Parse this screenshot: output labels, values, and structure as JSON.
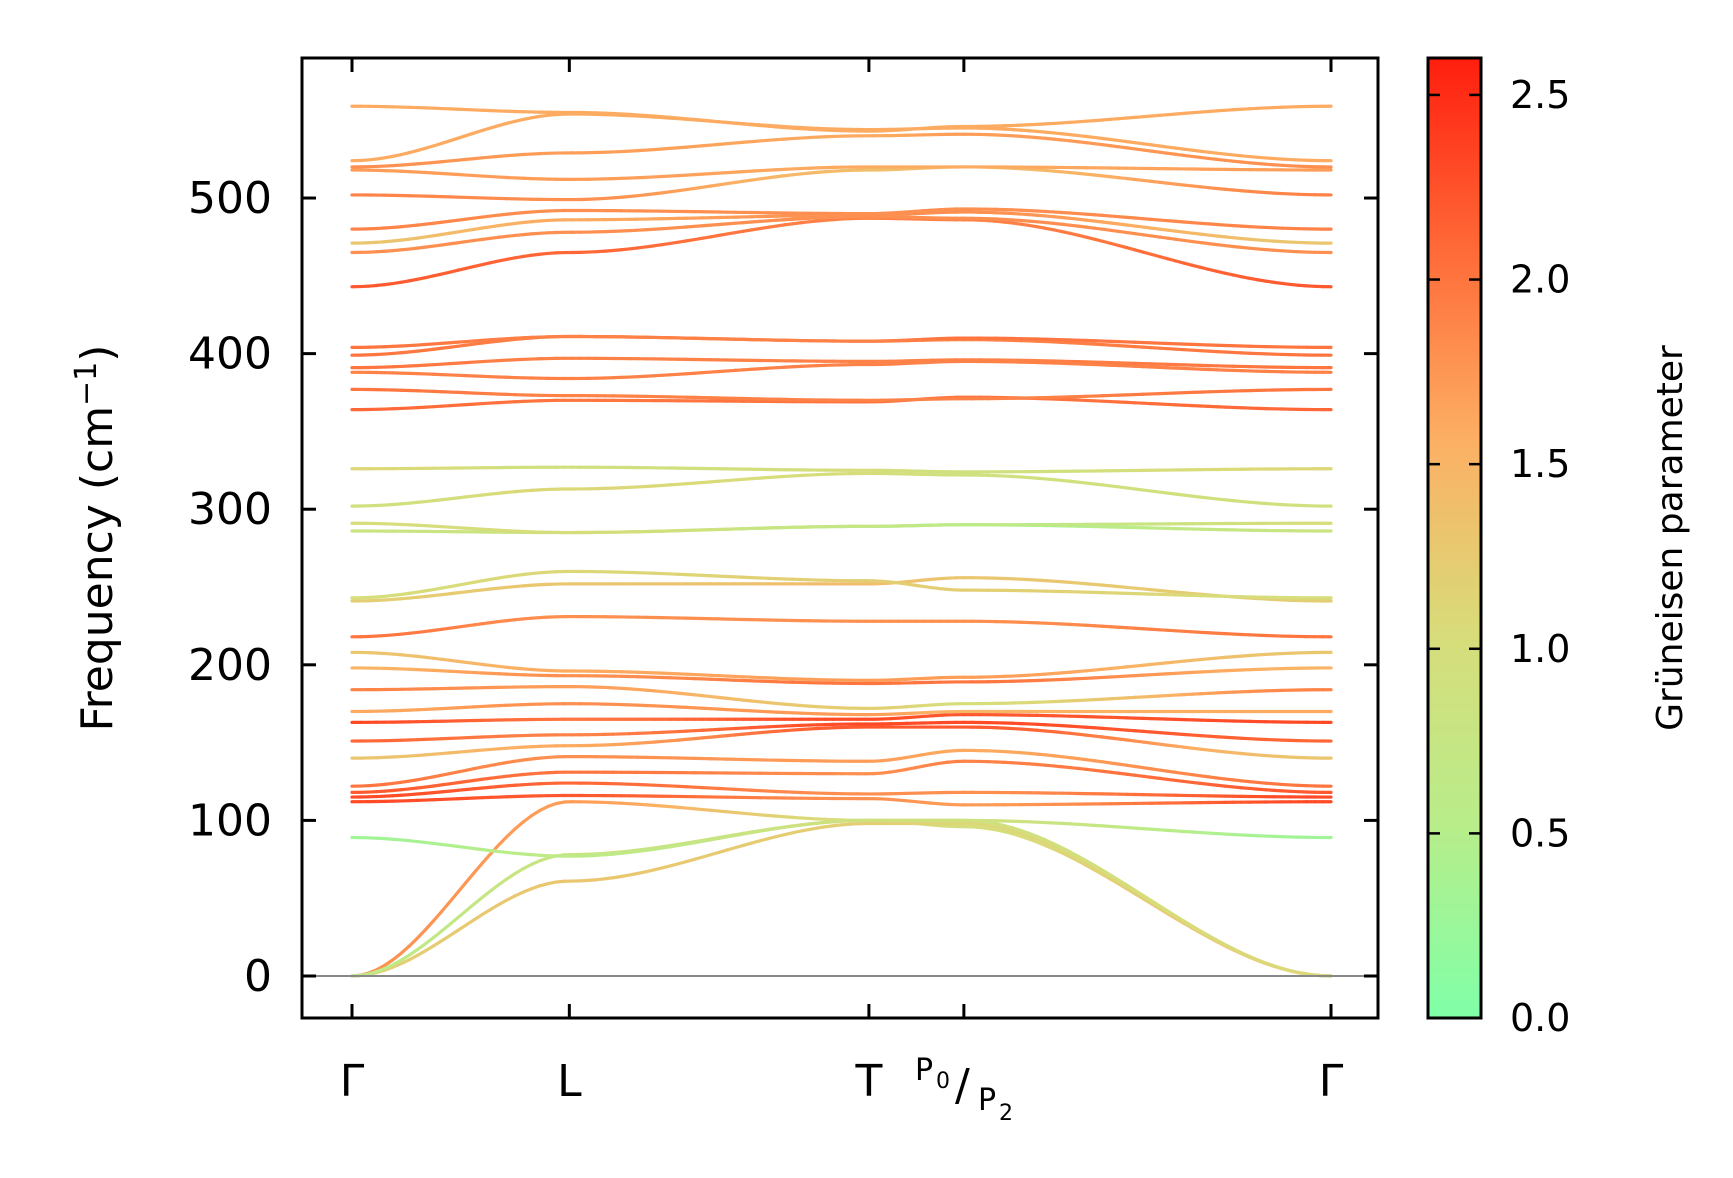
{
  "chart_data": {
    "type": "line",
    "title": "",
    "xlabel": "",
    "ylabel": "Frequency (cm",
    "ylabel_sup": "−1",
    "ylabel_close": ")",
    "ylim": [
      -27,
      590
    ],
    "yticks": [
      0,
      100,
      200,
      300,
      400,
      500
    ],
    "ytick_labels": [
      "0",
      "100",
      "200",
      "300",
      "400",
      "500"
    ],
    "path_points": [
      {
        "label": "Γ",
        "pos": 0.0
      },
      {
        "label": "L",
        "pos": 0.222
      },
      {
        "label": "T",
        "pos": 0.528
      },
      {
        "label_main": "P",
        "label_sub": "0",
        "label_sep": "/",
        "label_main2": "P",
        "label_sub2": "2",
        "pos": 0.625
      },
      {
        "label": "Γ",
        "pos": 1.0
      }
    ],
    "colorbar": {
      "label": "Grüneisen parameter",
      "range": [
        0.0,
        2.6
      ],
      "ticks": [
        0.0,
        0.5,
        1.0,
        1.5,
        2.0,
        2.5
      ],
      "tick_labels": [
        "0.0",
        "0.5",
        "1.0",
        "1.5",
        "2.0",
        "2.5"
      ],
      "colormap": [
        "#80ffa8",
        "#b8ed8a",
        "#d8dc7a",
        "#fcb064",
        "#ff6a38",
        "#ff1e0e"
      ]
    },
    "zero_line": {
      "y": 0,
      "color": "#888888"
    },
    "series": [
      {
        "name": "acoustic-1",
        "x": [
          0,
          0.222,
          0.528,
          0.625,
          1.0
        ],
        "y": [
          0,
          112,
          100,
          96,
          0
        ],
        "g": [
          1.8,
          1.7,
          1.0,
          1.0,
          1.6
        ]
      },
      {
        "name": "acoustic-2",
        "x": [
          0,
          0.222,
          0.528,
          0.625,
          1.0
        ],
        "y": [
          0,
          61,
          98,
          98,
          0
        ],
        "g": [
          1.2,
          1.3,
          1.2,
          1.1,
          1.1
        ]
      },
      {
        "name": "acoustic-3",
        "x": [
          0,
          0.222,
          0.528,
          0.625,
          1.0
        ],
        "y": [
          0,
          78,
          100,
          100,
          0
        ],
        "g": [
          0.6,
          0.8,
          0.9,
          0.9,
          1.1
        ]
      },
      {
        "name": "band-4",
        "x": [
          0,
          0.222,
          0.528,
          0.625,
          1.0
        ],
        "y": [
          89,
          77,
          100,
          100,
          89
        ],
        "g": [
          0.3,
          0.6,
          0.9,
          0.9,
          0.3
        ]
      },
      {
        "name": "band-5",
        "x": [
          0,
          0.222,
          0.528,
          0.625,
          1.0
        ],
        "y": [
          112,
          116,
          114,
          110,
          112
        ],
        "g": [
          2.3,
          2.2,
          1.8,
          1.7,
          2.3
        ]
      },
      {
        "name": "band-6",
        "x": [
          0,
          0.222,
          0.528,
          0.625,
          1.0
        ],
        "y": [
          115,
          124,
          117,
          118,
          115
        ],
        "g": [
          2.3,
          2.1,
          1.8,
          1.8,
          2.3
        ]
      },
      {
        "name": "band-7",
        "x": [
          0,
          0.222,
          0.528,
          0.625,
          1.0
        ],
        "y": [
          118,
          131,
          130,
          138,
          118
        ],
        "g": [
          2.2,
          2.0,
          1.8,
          1.9,
          2.2
        ]
      },
      {
        "name": "band-8",
        "x": [
          0,
          0.222,
          0.528,
          0.625,
          1.0
        ],
        "y": [
          122,
          141,
          138,
          145,
          122
        ],
        "g": [
          2.0,
          1.8,
          1.7,
          1.6,
          2.0
        ]
      },
      {
        "name": "band-9",
        "x": [
          0,
          0.222,
          0.528,
          0.625,
          1.0
        ],
        "y": [
          140,
          148,
          160,
          160,
          140
        ],
        "g": [
          1.3,
          1.6,
          2.2,
          2.2,
          1.3
        ]
      },
      {
        "name": "band-10",
        "x": [
          0,
          0.222,
          0.528,
          0.625,
          1.0
        ],
        "y": [
          151,
          155,
          162,
          163,
          151
        ],
        "g": [
          2.1,
          1.9,
          2.3,
          2.3,
          2.1
        ]
      },
      {
        "name": "band-11",
        "x": [
          0,
          0.222,
          0.528,
          0.625,
          1.0
        ],
        "y": [
          163,
          165,
          165,
          168,
          163
        ],
        "g": [
          2.3,
          2.0,
          2.3,
          2.2,
          2.3
        ]
      },
      {
        "name": "band-12",
        "x": [
          0,
          0.222,
          0.528,
          0.625,
          1.0
        ],
        "y": [
          170,
          175,
          168,
          170,
          170
        ],
        "g": [
          1.6,
          1.8,
          1.7,
          1.5,
          1.6
        ]
      },
      {
        "name": "band-13",
        "x": [
          0,
          0.222,
          0.528,
          0.625,
          1.0
        ],
        "y": [
          184,
          186,
          172,
          175,
          184
        ],
        "g": [
          1.9,
          1.7,
          1.2,
          1.0,
          1.9
        ]
      },
      {
        "name": "band-14",
        "x": [
          0,
          0.222,
          0.528,
          0.625,
          1.0
        ],
        "y": [
          198,
          193,
          188,
          189,
          198
        ],
        "g": [
          1.5,
          1.8,
          2.0,
          2.0,
          1.5
        ]
      },
      {
        "name": "band-15",
        "x": [
          0,
          0.222,
          0.528,
          0.625,
          1.0
        ],
        "y": [
          208,
          196,
          190,
          192,
          208
        ],
        "g": [
          1.3,
          1.6,
          1.7,
          1.7,
          1.3
        ]
      },
      {
        "name": "band-16",
        "x": [
          0,
          0.222,
          0.528,
          0.625,
          1.0
        ],
        "y": [
          218,
          231,
          228,
          228,
          218
        ],
        "g": [
          2.0,
          1.8,
          1.8,
          1.8,
          2.0
        ]
      },
      {
        "name": "band-17",
        "x": [
          0,
          0.222,
          0.528,
          0.625,
          1.0
        ],
        "y": [
          241,
          252,
          252,
          256,
          241
        ],
        "g": [
          1.2,
          1.3,
          1.4,
          1.3,
          1.2
        ]
      },
      {
        "name": "band-18",
        "x": [
          0,
          0.222,
          0.528,
          0.625,
          1.0
        ],
        "y": [
          243,
          260,
          254,
          248,
          243
        ],
        "g": [
          1.0,
          1.1,
          1.2,
          1.2,
          1.0
        ]
      },
      {
        "name": "band-19",
        "x": [
          0,
          0.222,
          0.528,
          0.625,
          1.0
        ],
        "y": [
          286,
          285,
          289,
          290,
          286
        ],
        "g": [
          0.8,
          0.8,
          0.5,
          0.4,
          0.8
        ]
      },
      {
        "name": "band-20",
        "x": [
          0,
          0.222,
          0.528,
          0.625,
          1.0
        ],
        "y": [
          291,
          285,
          289,
          290,
          291
        ],
        "g": [
          1.0,
          1.0,
          0.7,
          0.6,
          1.0
        ]
      },
      {
        "name": "band-21",
        "x": [
          0,
          0.222,
          0.528,
          0.625,
          1.0
        ],
        "y": [
          302,
          313,
          323,
          322,
          302
        ],
        "g": [
          0.9,
          1.1,
          1.0,
          0.9,
          0.9
        ]
      },
      {
        "name": "band-22",
        "x": [
          0,
          0.222,
          0.528,
          0.625,
          1.0
        ],
        "y": [
          326,
          327,
          325,
          324,
          326
        ],
        "g": [
          1.1,
          0.9,
          1.0,
          0.9,
          1.1
        ]
      },
      {
        "name": "band-23",
        "x": [
          0,
          0.222,
          0.528,
          0.625,
          1.0
        ],
        "y": [
          364,
          370,
          369,
          372,
          364
        ],
        "g": [
          2.1,
          2.0,
          2.0,
          2.0,
          2.1
        ]
      },
      {
        "name": "band-24",
        "x": [
          0,
          0.222,
          0.528,
          0.625,
          1.0
        ],
        "y": [
          377,
          373,
          370,
          371,
          377
        ],
        "g": [
          2.0,
          1.9,
          1.9,
          1.9,
          2.0
        ]
      },
      {
        "name": "band-25",
        "x": [
          0,
          0.222,
          0.528,
          0.625,
          1.0
        ],
        "y": [
          388,
          384,
          393,
          395,
          388
        ],
        "g": [
          1.9,
          1.9,
          1.9,
          1.9,
          1.9
        ]
      },
      {
        "name": "band-26",
        "x": [
          0,
          0.222,
          0.528,
          0.625,
          1.0
        ],
        "y": [
          391,
          397,
          395,
          396,
          391
        ],
        "g": [
          2.0,
          1.9,
          1.9,
          1.9,
          2.0
        ]
      },
      {
        "name": "band-27",
        "x": [
          0,
          0.222,
          0.528,
          0.625,
          1.0
        ],
        "y": [
          399,
          411,
          408,
          409,
          399
        ],
        "g": [
          2.0,
          1.9,
          1.9,
          1.9,
          2.0
        ]
      },
      {
        "name": "band-28",
        "x": [
          0,
          0.222,
          0.528,
          0.625,
          1.0
        ],
        "y": [
          404,
          411,
          408,
          410,
          404
        ],
        "g": [
          2.0,
          1.9,
          1.9,
          2.0,
          2.0
        ]
      },
      {
        "name": "band-29",
        "x": [
          0,
          0.222,
          0.528,
          0.625,
          1.0
        ],
        "y": [
          443,
          465,
          487,
          486,
          443
        ],
        "g": [
          2.2,
          2.1,
          1.9,
          1.9,
          2.2
        ]
      },
      {
        "name": "band-30",
        "x": [
          0,
          0.222,
          0.528,
          0.625,
          1.0
        ],
        "y": [
          465,
          478,
          488,
          487,
          465
        ],
        "g": [
          1.8,
          1.8,
          1.8,
          1.8,
          1.8
        ]
      },
      {
        "name": "band-31",
        "x": [
          0,
          0.222,
          0.528,
          0.625,
          1.0
        ],
        "y": [
          471,
          486,
          489,
          491,
          471
        ],
        "g": [
          1.3,
          1.6,
          1.8,
          1.8,
          1.3
        ]
      },
      {
        "name": "band-32",
        "x": [
          0,
          0.222,
          0.528,
          0.625,
          1.0
        ],
        "y": [
          480,
          492,
          490,
          493,
          480
        ],
        "g": [
          1.9,
          1.8,
          1.8,
          1.8,
          1.9
        ]
      },
      {
        "name": "band-33",
        "x": [
          0,
          0.222,
          0.528,
          0.625,
          1.0
        ],
        "y": [
          502,
          499,
          518,
          520,
          502
        ],
        "g": [
          1.9,
          1.8,
          1.4,
          1.4,
          1.9
        ]
      },
      {
        "name": "band-34",
        "x": [
          0,
          0.222,
          0.528,
          0.625,
          1.0
        ],
        "y": [
          518,
          512,
          520,
          520,
          518
        ],
        "g": [
          1.7,
          1.7,
          1.6,
          1.6,
          1.7
        ]
      },
      {
        "name": "band-35",
        "x": [
          0,
          0.222,
          0.528,
          0.625,
          1.0
        ],
        "y": [
          520,
          529,
          540,
          541,
          520
        ],
        "g": [
          1.8,
          1.7,
          1.6,
          1.7,
          1.8
        ]
      },
      {
        "name": "band-36",
        "x": [
          0,
          0.222,
          0.528,
          0.625,
          1.0
        ],
        "y": [
          524,
          554,
          544,
          545,
          524
        ],
        "g": [
          1.6,
          1.6,
          1.6,
          1.6,
          1.6
        ]
      },
      {
        "name": "band-37",
        "x": [
          0,
          0.222,
          0.528,
          0.625,
          1.0
        ],
        "y": [
          559,
          555,
          543,
          546,
          559
        ],
        "g": [
          1.6,
          1.6,
          1.6,
          1.6,
          1.6
        ]
      }
    ]
  }
}
